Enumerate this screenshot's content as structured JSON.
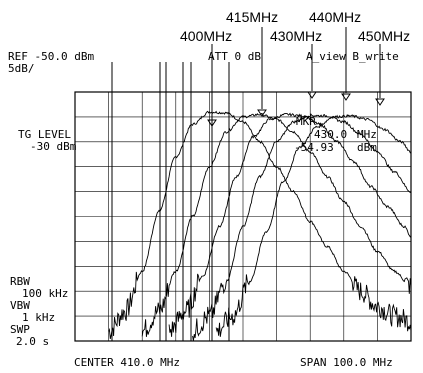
{
  "chart_data": {
    "type": "line",
    "instrument": {
      "ref_label": "REF -50.0 dBm",
      "scale_label": "5dB/",
      "att_label": "ATT 0 dB",
      "view_label": "A_view B_write",
      "tg_label": "TG LEVEL",
      "tg_value": "-30 dBm",
      "mkr_label": "MKR",
      "mkr_freq": "430.0",
      "mkr_freq_unit": "MHz",
      "mkr_level": "-54.93",
      "mkr_level_unit": "dBm",
      "rbw_label": "RBW",
      "rbw_value": "100 kHz",
      "vbw_label": "VBW",
      "vbw_value": "1 kHz",
      "swp_label": "SWP",
      "swp_value": "2.0 s",
      "center_label": "CENTER 410.0 MHz",
      "span_label": "SPAN 100.0 MHz"
    },
    "annotations": [
      "400MHz",
      "415MHz",
      "430MHz",
      "440MHz",
      "450MHz"
    ],
    "x_range_mhz": [
      360,
      460
    ],
    "y_range_dbm": [
      -100,
      -50
    ],
    "x_divisions": 10,
    "y_divisions": 10,
    "grid": true,
    "series": [
      {
        "x": [
          370,
          375,
          380,
          385,
          390,
          395,
          400,
          405,
          410,
          415,
          420,
          425,
          430,
          435,
          440,
          445,
          450,
          455,
          460
        ],
        "y": [
          -98,
          -94,
          -86,
          -74,
          -63,
          -56.5,
          -54,
          -54.2,
          -56,
          -60,
          -65,
          -70,
          -76,
          -81,
          -86,
          -90,
          -93,
          -95,
          -96
        ]
      },
      {
        "x": [
          380,
          385,
          390,
          395,
          400,
          405,
          410,
          415,
          420,
          425,
          430,
          435,
          440,
          445,
          450,
          455,
          460
        ],
        "y": [
          -98,
          -94,
          -86,
          -75,
          -65,
          -58,
          -55,
          -54.5,
          -55.5,
          -58,
          -62,
          -67,
          -72,
          -77,
          -82,
          -86,
          -89
        ]
      },
      {
        "x": [
          388,
          393,
          398,
          403,
          408,
          413,
          418,
          423,
          428,
          433,
          438,
          443,
          448,
          453,
          458,
          460
        ],
        "y": [
          -98,
          -94,
          -87,
          -77,
          -67,
          -59,
          -55.5,
          -54.5,
          -54.8,
          -56.5,
          -60,
          -64,
          -69,
          -73,
          -77,
          -79
        ]
      },
      {
        "x": [
          395,
          400,
          405,
          410,
          415,
          420,
          425,
          430,
          435,
          440,
          445,
          450,
          455,
          460
        ],
        "y": [
          -98,
          -95,
          -88,
          -77,
          -67,
          -60,
          -56,
          -54.7,
          -54.8,
          -56,
          -58.5,
          -62,
          -66,
          -70
        ]
      },
      {
        "x": [
          402,
          407,
          412,
          417,
          422,
          427,
          432,
          437,
          442,
          447,
          452,
          457,
          460
        ],
        "y": [
          -98,
          -95,
          -88,
          -78,
          -68,
          -61,
          -57,
          -55,
          -54.8,
          -55.5,
          -57.5,
          -60,
          -62
        ]
      }
    ]
  }
}
